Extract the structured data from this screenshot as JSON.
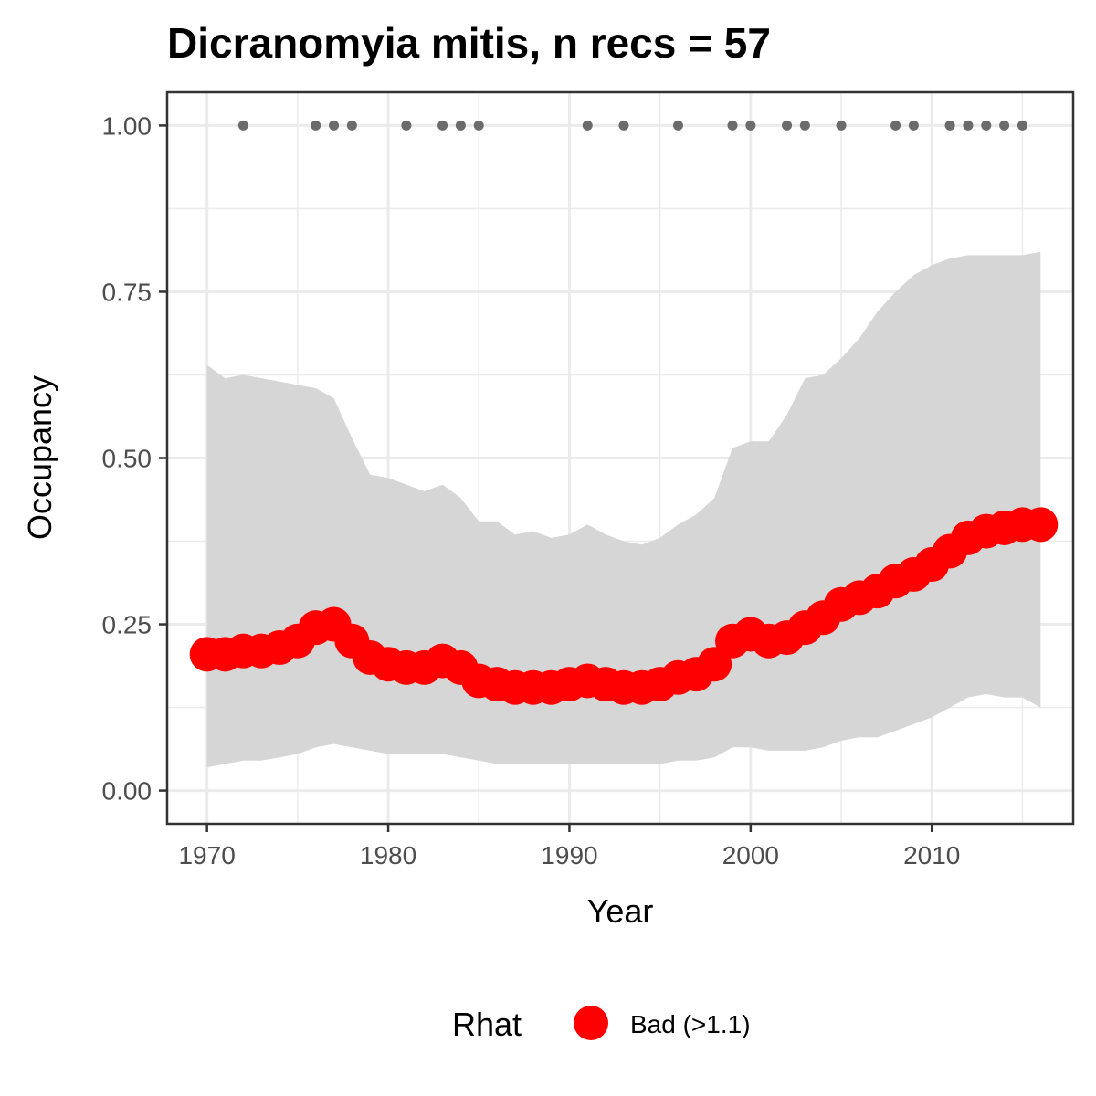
{
  "chart_data": {
    "type": "line",
    "title": "Dicranomyia mitis, n recs = 57",
    "xlabel": "Year",
    "ylabel": "Occupancy",
    "xlim": [
      1967.8,
      2017.8
    ],
    "ylim": [
      -0.05,
      1.05
    ],
    "x_ticks": [
      1970,
      1980,
      1990,
      2000,
      2010
    ],
    "x_tick_labels": [
      "1970",
      "1980",
      "1990",
      "2000",
      "2010"
    ],
    "x_minor_ticks": [
      1975,
      1985,
      1995,
      2005,
      2015
    ],
    "y_ticks": [
      0,
      0.25,
      0.5,
      0.75,
      1.0
    ],
    "y_tick_labels": [
      "0.00",
      "0.25",
      "0.50",
      "0.75",
      "1.00"
    ],
    "y_minor_ticks": [
      0.125,
      0.375,
      0.625,
      0.875
    ],
    "grid": true,
    "years": [
      1970,
      1971,
      1972,
      1973,
      1974,
      1975,
      1976,
      1977,
      1978,
      1979,
      1980,
      1981,
      1982,
      1983,
      1984,
      1985,
      1986,
      1987,
      1988,
      1989,
      1990,
      1991,
      1992,
      1993,
      1994,
      1995,
      1996,
      1997,
      1998,
      1999,
      2000,
      2001,
      2002,
      2003,
      2004,
      2005,
      2006,
      2007,
      2008,
      2009,
      2010,
      2011,
      2012,
      2013,
      2014,
      2015,
      2016
    ],
    "series": [
      {
        "name": "Occupancy",
        "values": [
          0.205,
          0.205,
          0.21,
          0.21,
          0.215,
          0.225,
          0.245,
          0.25,
          0.225,
          0.2,
          0.19,
          0.185,
          0.185,
          0.195,
          0.185,
          0.165,
          0.16,
          0.155,
          0.155,
          0.155,
          0.16,
          0.165,
          0.16,
          0.155,
          0.155,
          0.16,
          0.17,
          0.175,
          0.19,
          0.225,
          0.235,
          0.225,
          0.23,
          0.245,
          0.26,
          0.28,
          0.29,
          0.3,
          0.315,
          0.325,
          0.34,
          0.36,
          0.38,
          0.39,
          0.395,
          0.4,
          0.4
        ]
      }
    ],
    "ci_lower": [
      0.035,
      0.04,
      0.045,
      0.045,
      0.05,
      0.055,
      0.065,
      0.07,
      0.065,
      0.06,
      0.055,
      0.055,
      0.055,
      0.055,
      0.05,
      0.045,
      0.04,
      0.04,
      0.04,
      0.04,
      0.04,
      0.04,
      0.04,
      0.04,
      0.04,
      0.04,
      0.045,
      0.045,
      0.05,
      0.065,
      0.065,
      0.06,
      0.06,
      0.06,
      0.065,
      0.075,
      0.08,
      0.08,
      0.09,
      0.1,
      0.11,
      0.125,
      0.14,
      0.145,
      0.14,
      0.14,
      0.125
    ],
    "ci_upper": [
      0.64,
      0.62,
      0.625,
      0.62,
      0.615,
      0.61,
      0.605,
      0.59,
      0.53,
      0.475,
      0.47,
      0.46,
      0.45,
      0.46,
      0.44,
      0.405,
      0.405,
      0.385,
      0.39,
      0.38,
      0.385,
      0.4,
      0.385,
      0.375,
      0.37,
      0.38,
      0.4,
      0.415,
      0.44,
      0.515,
      0.525,
      0.525,
      0.565,
      0.62,
      0.625,
      0.65,
      0.68,
      0.72,
      0.75,
      0.775,
      0.79,
      0.8,
      0.805,
      0.805,
      0.805,
      0.805,
      0.81
    ],
    "record_years": [
      1972,
      1976,
      1977,
      1978,
      1981,
      1983,
      1984,
      1985,
      1991,
      1993,
      1996,
      1999,
      2000,
      2002,
      2003,
      2005,
      2008,
      2009,
      2011,
      2012,
      2013,
      2014,
      2015
    ],
    "record_value": 1.0,
    "legend": {
      "title": "Rhat",
      "label": "Bad (>1.1)",
      "placement": "bottom"
    },
    "colors": {
      "line": "#ff0000",
      "ribbon": "#d6d6d6",
      "records": "#6b6b6b",
      "grid": "#ebebeb",
      "panel_border": "#333333"
    }
  }
}
